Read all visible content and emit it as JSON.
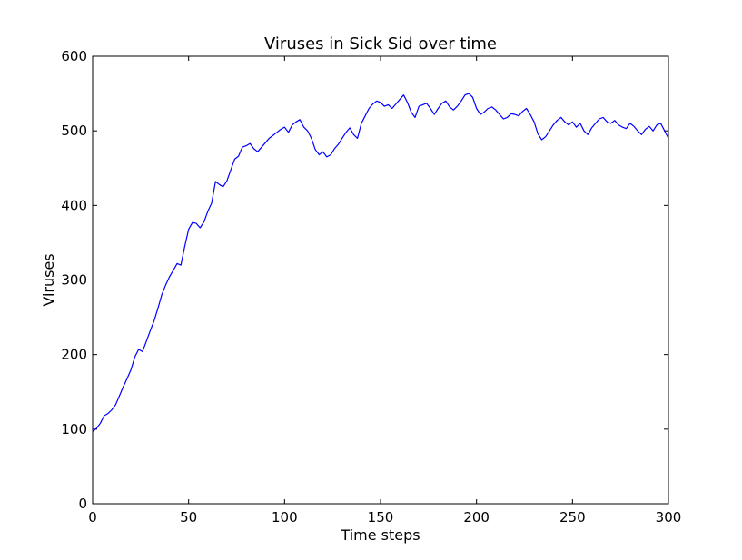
{
  "chart_data": {
    "type": "line",
    "title": "Viruses in Sick Sid over time",
    "xlabel": "Time steps",
    "ylabel": "Viruses",
    "xlim": [
      0,
      300
    ],
    "ylim": [
      0,
      600
    ],
    "xticks": [
      0,
      50,
      100,
      150,
      200,
      250,
      300
    ],
    "yticks": [
      0,
      100,
      200,
      300,
      400,
      500,
      600
    ],
    "grid": false,
    "legend": "none",
    "line_color": "#0000ff",
    "series": [
      {
        "x": [
          0,
          2,
          4,
          6,
          8,
          10,
          12,
          14,
          16,
          18,
          20,
          22,
          24,
          26,
          28,
          30,
          32,
          34,
          36,
          38,
          40,
          42,
          44,
          46,
          48,
          50,
          52,
          54,
          56,
          58,
          60,
          62,
          64,
          66,
          68,
          70,
          72,
          74,
          76,
          78,
          80,
          82,
          84,
          86,
          88,
          90,
          92,
          94,
          96,
          98,
          100,
          102,
          104,
          106,
          108,
          110,
          112,
          114,
          116,
          118,
          120,
          122,
          124,
          126,
          128,
          130,
          132,
          134,
          136,
          138,
          140,
          142,
          144,
          146,
          148,
          150,
          152,
          154,
          156,
          158,
          160,
          162,
          164,
          166,
          168,
          170,
          172,
          174,
          176,
          178,
          180,
          182,
          184,
          186,
          188,
          190,
          192,
          194,
          196,
          198,
          200,
          202,
          204,
          206,
          208,
          210,
          212,
          214,
          216,
          218,
          220,
          222,
          224,
          226,
          228,
          230,
          232,
          234,
          236,
          238,
          240,
          242,
          244,
          246,
          248,
          250,
          252,
          254,
          256,
          258,
          260,
          262,
          264,
          266,
          268,
          270,
          272,
          274,
          276,
          278,
          280,
          282,
          284,
          286,
          288,
          290,
          292,
          294,
          296,
          298,
          300
        ],
        "y": [
          97,
          101,
          108,
          118,
          121,
          126,
          133,
          145,
          157,
          168,
          180,
          197,
          207,
          204,
          218,
          232,
          245,
          262,
          280,
          293,
          304,
          313,
          322,
          320,
          345,
          368,
          377,
          376,
          370,
          378,
          392,
          403,
          432,
          428,
          425,
          433,
          448,
          462,
          466,
          478,
          480,
          483,
          476,
          472,
          478,
          484,
          490,
          494,
          498,
          502,
          505,
          498,
          508,
          512,
          515,
          505,
          500,
          490,
          475,
          468,
          472,
          465,
          468,
          476,
          482,
          490,
          498,
          504,
          495,
          490,
          510,
          520,
          530,
          536,
          540,
          538,
          533,
          535,
          530,
          536,
          542,
          548,
          538,
          525,
          518,
          533,
          535,
          537,
          530,
          522,
          530,
          537,
          540,
          532,
          528,
          533,
          540,
          548,
          550,
          545,
          530,
          522,
          525,
          530,
          532,
          528,
          522,
          516,
          518,
          523,
          522,
          520,
          526,
          530,
          522,
          512,
          496,
          488,
          492,
          500,
          508,
          514,
          518,
          512,
          508,
          512,
          505,
          510,
          500,
          495,
          504,
          510,
          516,
          518,
          512,
          510,
          514,
          508,
          505,
          503,
          510,
          506,
          500,
          495,
          502,
          506,
          500,
          508,
          510,
          500,
          490
        ]
      }
    ]
  }
}
